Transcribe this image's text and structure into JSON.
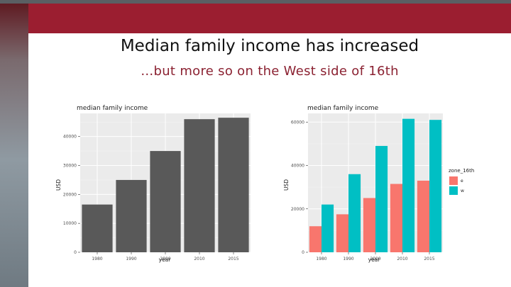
{
  "slide": {
    "title": "Median family income has increased",
    "subtitle": "…but more so on the West side of 16th"
  },
  "chart_data": [
    {
      "type": "bar",
      "title": "median family income",
      "xlabel": "year",
      "ylabel": "USD",
      "categories": [
        "1980",
        "1990",
        "2000",
        "2010",
        "2015"
      ],
      "values": [
        16500,
        25000,
        35000,
        46000,
        46500
      ],
      "ylim": [
        0,
        48000
      ],
      "yticks": [
        0,
        10000,
        20000,
        30000,
        40000
      ],
      "ytick_labels": [
        "0",
        "10000",
        "20000",
        "30000",
        "40000"
      ],
      "grid": true,
      "colors": {
        "bar": "#595959"
      }
    },
    {
      "type": "bar",
      "title": "median family income",
      "xlabel": "year",
      "ylabel": "USD",
      "categories": [
        "1980",
        "1990",
        "2000",
        "2010",
        "2015"
      ],
      "series": [
        {
          "name": "e",
          "values": [
            12000,
            17500,
            25000,
            31500,
            33000
          ],
          "color": "#f8766d"
        },
        {
          "name": "w",
          "values": [
            22000,
            36000,
            49000,
            61500,
            61000
          ],
          "color": "#00bfc4"
        }
      ],
      "ylim": [
        0,
        64000
      ],
      "yticks": [
        0,
        20000,
        40000,
        60000
      ],
      "ytick_labels": [
        "0",
        "20000",
        "40000",
        "60000"
      ],
      "grid": true,
      "legend": {
        "title": "zone_16th",
        "placement": "right"
      }
    }
  ]
}
